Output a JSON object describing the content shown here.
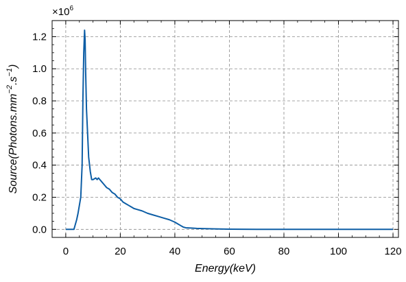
{
  "chart_data": {
    "type": "line",
    "title": "",
    "xlabel": "Energy",
    "xlabel_unit": "(keV)",
    "ylabel": "Source",
    "ylabel_unit_html": "(Photons.mm",
    "ylabel_exp1": "−2",
    "ylabel_mid": ".s",
    "ylabel_exp2": "−1",
    "ylabel_close": ")",
    "offset_base": "×10",
    "offset_exp": "6",
    "xlim": [
      -5,
      122
    ],
    "ylim": [
      -0.05,
      1.3
    ],
    "xticks": [
      0,
      20,
      40,
      60,
      80,
      100,
      120
    ],
    "xtick_labels": [
      "0",
      "20",
      "40",
      "60",
      "80",
      "100",
      "120"
    ],
    "yticks": [
      0.0,
      0.2,
      0.4,
      0.6,
      0.8,
      1.0,
      1.2
    ],
    "ytick_labels": [
      "0.0",
      "0.2",
      "0.4",
      "0.6",
      "0.8",
      "1.0",
      "1.2"
    ],
    "grid": true,
    "line_color": "#0c5da5",
    "series": [
      {
        "x": [
          0,
          3,
          3.5,
          4,
          4.5,
          5,
          5.5,
          6,
          6.3,
          6.6,
          6.9,
          7.1,
          7.3,
          7.6,
          8.0,
          8.4,
          9.0,
          9.5,
          10,
          11,
          11.5,
          12,
          12.5,
          13,
          14,
          15,
          16,
          17,
          18,
          19,
          20,
          21,
          22,
          23,
          24,
          25,
          26,
          28,
          30,
          32,
          34,
          36,
          38,
          40,
          41,
          42,
          43,
          44,
          46,
          48,
          50,
          55,
          60,
          65,
          70,
          80,
          90,
          100,
          110,
          120
        ],
        "y": [
          0.0,
          0.0,
          0.03,
          0.06,
          0.1,
          0.15,
          0.2,
          0.4,
          0.82,
          1.1,
          1.24,
          1.18,
          0.98,
          0.75,
          0.6,
          0.45,
          0.36,
          0.31,
          0.31,
          0.32,
          0.31,
          0.32,
          0.31,
          0.3,
          0.28,
          0.26,
          0.25,
          0.23,
          0.22,
          0.2,
          0.19,
          0.17,
          0.16,
          0.15,
          0.14,
          0.13,
          0.125,
          0.115,
          0.1,
          0.09,
          0.08,
          0.07,
          0.06,
          0.045,
          0.035,
          0.025,
          0.015,
          0.01,
          0.008,
          0.006,
          0.005,
          0.003,
          0.001,
          0.0005,
          0.0003,
          0.0002,
          0.0001,
          0.0,
          0.0,
          0.0
        ]
      }
    ]
  }
}
